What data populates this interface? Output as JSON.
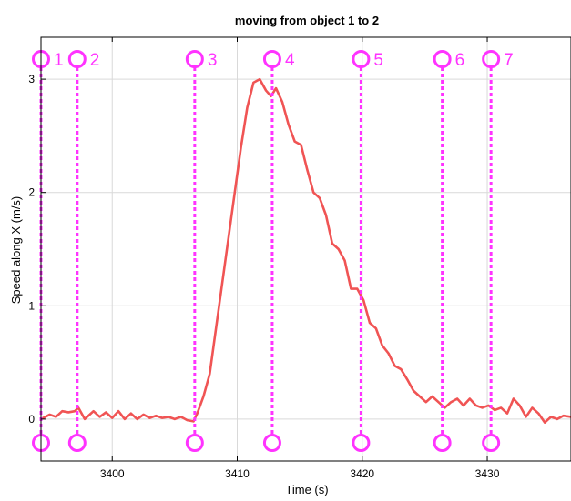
{
  "chart_data": {
    "type": "line",
    "title": "moving from object 1 to 2",
    "xlabel": "Time (s)",
    "ylabel": "Speed along X (m/s)",
    "xlim": [
      3394.3,
      3436.7
    ],
    "ylim": [
      -0.37,
      3.37
    ],
    "x_ticks": [
      3400,
      3410,
      3420,
      3430
    ],
    "y_ticks": [
      0,
      1,
      2,
      3
    ],
    "grid": true,
    "series": [
      {
        "color": "#f05454",
        "x": [
          3394.3,
          3395.0,
          3395.5,
          3396.0,
          3396.5,
          3397.0,
          3397.3,
          3397.8,
          3398.5,
          3399.0,
          3399.5,
          3400.0,
          3400.5,
          3401.0,
          3401.5,
          3402.0,
          3402.5,
          3403.0,
          3403.5,
          3404.0,
          3404.5,
          3405.0,
          3405.5,
          3406.0,
          3406.5,
          3406.8,
          3407.3,
          3407.8,
          3408.3,
          3408.8,
          3409.3,
          3409.8,
          3410.3,
          3410.8,
          3411.3,
          3411.8,
          3412.3,
          3412.7,
          3413.1,
          3413.6,
          3414.1,
          3414.6,
          3415.1,
          3415.6,
          3416.1,
          3416.6,
          3417.1,
          3417.6,
          3418.1,
          3418.6,
          3419.1,
          3419.6,
          3420.1,
          3420.6,
          3421.1,
          3421.6,
          3422.1,
          3422.6,
          3423.1,
          3423.6,
          3424.1,
          3424.6,
          3425.1,
          3425.6,
          3426.1,
          3426.6,
          3427.1,
          3427.6,
          3428.1,
          3428.6,
          3429.1,
          3429.6,
          3430.1,
          3430.6,
          3431.1,
          3431.6,
          3432.1,
          3432.6,
          3433.1,
          3433.6,
          3434.1,
          3434.6,
          3435.1,
          3435.6,
          3436.1,
          3436.7
        ],
        "y": [
          0.0,
          0.04,
          0.02,
          0.07,
          0.06,
          0.07,
          0.1,
          0.0,
          0.07,
          0.02,
          0.06,
          0.01,
          0.07,
          0.0,
          0.05,
          0.0,
          0.04,
          0.01,
          0.03,
          0.01,
          0.02,
          0.0,
          0.02,
          -0.01,
          -0.02,
          0.05,
          0.2,
          0.4,
          0.8,
          1.2,
          1.6,
          2.0,
          2.4,
          2.75,
          2.97,
          3.0,
          2.9,
          2.85,
          2.92,
          2.8,
          2.6,
          2.45,
          2.42,
          2.2,
          2.0,
          1.95,
          1.8,
          1.55,
          1.5,
          1.4,
          1.15,
          1.15,
          1.05,
          0.85,
          0.8,
          0.65,
          0.58,
          0.47,
          0.44,
          0.35,
          0.25,
          0.2,
          0.15,
          0.2,
          0.15,
          0.1,
          0.15,
          0.18,
          0.12,
          0.18,
          0.12,
          0.1,
          0.12,
          0.08,
          0.1,
          0.05,
          0.18,
          0.12,
          0.02,
          0.1,
          0.05,
          -0.03,
          0.02,
          0.0,
          0.03,
          0.02
        ]
      }
    ],
    "markers": [
      {
        "label": "1",
        "x": 3394.3
      },
      {
        "label": "2",
        "x": 3397.2
      },
      {
        "label": "3",
        "x": 3406.6
      },
      {
        "label": "4",
        "x": 3412.8
      },
      {
        "label": "5",
        "x": 3419.9
      },
      {
        "label": "6",
        "x": 3426.4
      },
      {
        "label": "7",
        "x": 3430.3
      }
    ],
    "marker_color": "#ff33ff"
  }
}
